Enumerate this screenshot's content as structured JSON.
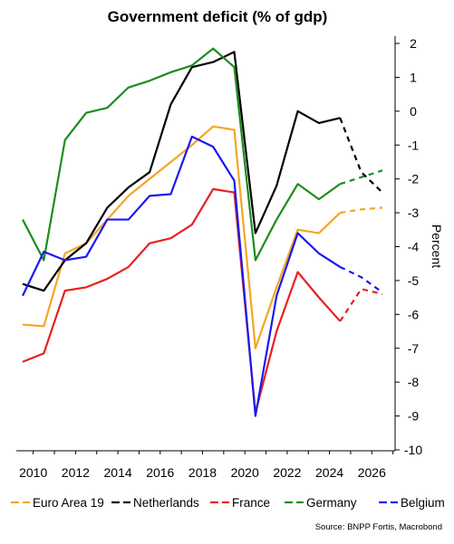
{
  "chart_data": {
    "type": "line",
    "title": "Government deficit (% of gdp)",
    "ylabel": "Percent",
    "source": "Source: BNPP Fortis, Macrobond",
    "x_ticks": [
      "2010",
      "2012",
      "2014",
      "2016",
      "2018",
      "2020",
      "2022",
      "2024",
      "2026"
    ],
    "y_ticks": [
      "2",
      "1",
      "0",
      "-1",
      "-2",
      "-3",
      "-4",
      "-5",
      "-6",
      "-7",
      "-8",
      "-9",
      "-10"
    ],
    "xlim": [
      2009.2,
      2027.1
    ],
    "ylim": [
      -10,
      2
    ],
    "legend_position": "bottom",
    "forecast_style": "dashed",
    "series": [
      {
        "name": "Euro Area 19",
        "color": "#f5a623",
        "x": [
          2009.5,
          2010.5,
          2011.5,
          2012.5,
          2013.5,
          2014.5,
          2015.5,
          2016.5,
          2017.5,
          2018.5,
          2019.5,
          2020.5,
          2021.5,
          2022.5,
          2023.5,
          2024.5,
          2025.5,
          2026.5
        ],
        "values": [
          -6.3,
          -6.35,
          -4.2,
          -3.9,
          -3.2,
          -2.5,
          -2.0,
          -1.5,
          -1.0,
          -0.45,
          -0.55,
          -7.0,
          -5.2,
          -3.5,
          -3.6,
          -3.0,
          -2.9,
          -2.85
        ],
        "forecast_from": 2024.5
      },
      {
        "name": "Netherlands",
        "color": "#000000",
        "x": [
          2009.5,
          2010.5,
          2011.5,
          2012.5,
          2013.5,
          2014.5,
          2015.5,
          2016.5,
          2017.5,
          2018.5,
          2019.5,
          2020.5,
          2021.5,
          2022.5,
          2023.5,
          2024.5,
          2025.5,
          2026.5
        ],
        "values": [
          -5.1,
          -5.3,
          -4.4,
          -3.9,
          -2.85,
          -2.25,
          -1.8,
          0.2,
          1.3,
          1.45,
          1.75,
          -3.6,
          -2.2,
          0.0,
          -0.35,
          -0.2,
          -1.8,
          -2.4
        ],
        "forecast_from": 2024.5
      },
      {
        "name": "France",
        "color": "#e8201e",
        "x": [
          2009.5,
          2010.5,
          2011.5,
          2012.5,
          2013.5,
          2014.5,
          2015.5,
          2016.5,
          2017.5,
          2018.5,
          2019.5,
          2020.5,
          2021.5,
          2022.5,
          2023.5,
          2024.5,
          2025.5,
          2026.5
        ],
        "values": [
          -7.4,
          -7.15,
          -5.3,
          -5.2,
          -4.95,
          -4.6,
          -3.9,
          -3.75,
          -3.35,
          -2.3,
          -2.4,
          -8.9,
          -6.5,
          -4.75,
          -5.5,
          -6.2,
          -5.25,
          -5.4
        ],
        "forecast_from": 2024.5
      },
      {
        "name": "Germany",
        "color": "#1e8c1e",
        "x": [
          2009.5,
          2010.5,
          2011.5,
          2012.5,
          2013.5,
          2014.5,
          2015.5,
          2016.5,
          2017.5,
          2018.5,
          2019.5,
          2020.5,
          2021.5,
          2022.5,
          2023.5,
          2024.5,
          2025.5,
          2026.5
        ],
        "values": [
          -3.2,
          -4.4,
          -0.85,
          -0.05,
          0.1,
          0.7,
          0.9,
          1.15,
          1.35,
          1.85,
          1.3,
          -4.4,
          -3.2,
          -2.15,
          -2.6,
          -2.15,
          -1.95,
          -1.75
        ],
        "forecast_from": 2024.5
      },
      {
        "name": "Belgium",
        "color": "#1a1aee",
        "x": [
          2009.5,
          2010.5,
          2011.5,
          2012.5,
          2013.5,
          2014.5,
          2015.5,
          2016.5,
          2017.5,
          2018.5,
          2019.5,
          2020.5,
          2021.5,
          2022.5,
          2023.5,
          2024.5,
          2025.5,
          2026.5
        ],
        "values": [
          -5.45,
          -4.15,
          -4.4,
          -4.3,
          -3.2,
          -3.2,
          -2.5,
          -2.45,
          -0.75,
          -1.05,
          -2.05,
          -9.0,
          -5.45,
          -3.6,
          -4.2,
          -4.6,
          -4.9,
          -5.35
        ],
        "forecast_from": 2024.5
      }
    ]
  }
}
